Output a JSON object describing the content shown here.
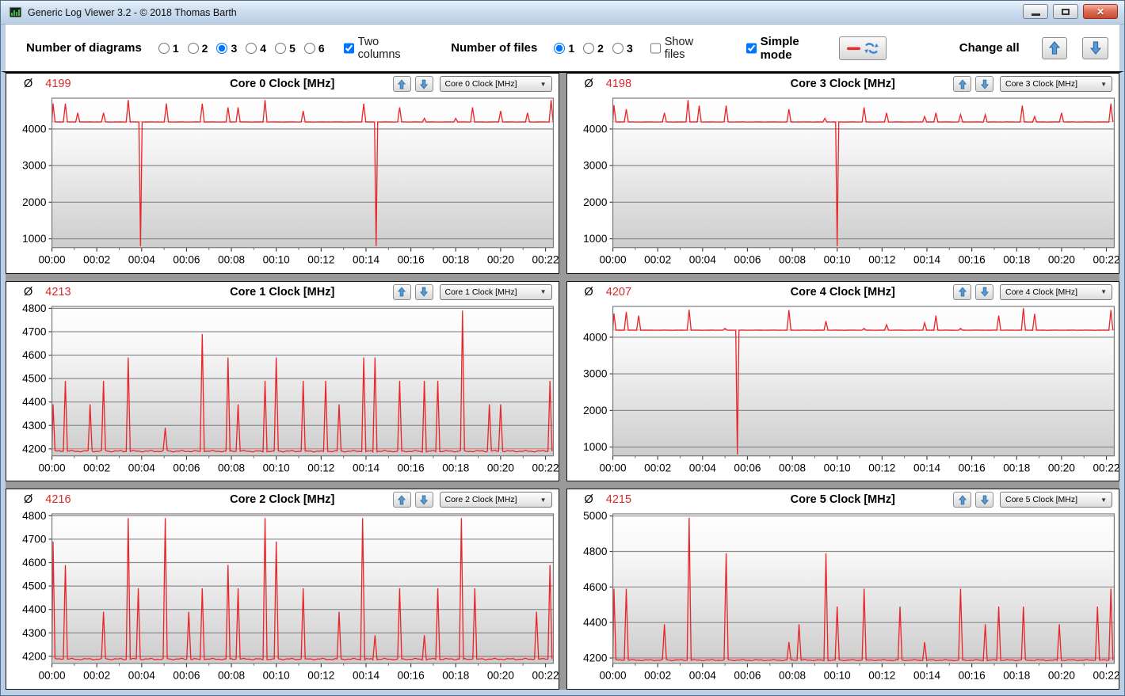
{
  "window": {
    "title": "Generic Log Viewer 3.2 - © 2018 Thomas Barth",
    "controls": {
      "minimize": "minimize",
      "maximize": "maximize",
      "close": "close"
    }
  },
  "toolbar": {
    "diagrams_label": "Number of diagrams",
    "diagram_options": [
      "1",
      "2",
      "3",
      "4",
      "5",
      "6"
    ],
    "diagrams_selected": "3",
    "two_columns_label": "Two columns",
    "two_columns_checked": true,
    "files_label": "Number of files",
    "file_options": [
      "1",
      "2",
      "3"
    ],
    "files_selected": "1",
    "show_files_label": "Show files",
    "show_files_checked": false,
    "simple_mode_label": "Simple mode",
    "simple_mode_checked": true,
    "change_all_label": "Change all"
  },
  "colors": {
    "line": "#e8262a",
    "line_faint": "#f2a8a8",
    "average_value": "#d42a2a",
    "grid_line": "#8c8c8c",
    "plot_border": "#7a7a7a",
    "arrow_blue": "#4a8ed2"
  },
  "chart_data": [
    {
      "type": "line",
      "title": "Core 0 Clock [MHz]",
      "average": "4199",
      "average_symbol": "Ø",
      "dropdown_value": "Core 0 Clock [MHz]",
      "x_tick_labels": [
        "00:00",
        "00:02",
        "00:04",
        "00:06",
        "00:08",
        "00:10",
        "00:12",
        "00:14",
        "00:16",
        "00:18",
        "00:20",
        "00:22"
      ],
      "xlim": [
        0,
        22.35
      ],
      "ylim": [
        760,
        4840
      ],
      "yticks": [
        1000,
        2000,
        3000,
        4000
      ],
      "baseline": 4190,
      "spikes": [
        [
          0.05,
          4690
        ],
        [
          0.6,
          4690
        ],
        [
          1.15,
          4440
        ],
        [
          2.3,
          4440
        ],
        [
          3.4,
          4790
        ],
        [
          5.1,
          4690
        ],
        [
          6.7,
          4690
        ],
        [
          7.85,
          4590
        ],
        [
          8.3,
          4590
        ],
        [
          9.5,
          4790
        ],
        [
          11.2,
          4490
        ],
        [
          13.9,
          4690
        ],
        [
          15.5,
          4590
        ],
        [
          16.6,
          4290
        ],
        [
          18.0,
          4290
        ],
        [
          18.75,
          4590
        ],
        [
          20.0,
          4490
        ],
        [
          21.2,
          4440
        ],
        [
          22.25,
          4790
        ]
      ],
      "dips": [
        [
          3.95,
          800
        ],
        [
          14.45,
          800
        ]
      ]
    },
    {
      "type": "line",
      "title": "Core 3 Clock [MHz]",
      "average": "4198",
      "average_symbol": "Ø",
      "dropdown_value": "Core 3 Clock [MHz]",
      "x_tick_labels": [
        "00:00",
        "00:02",
        "00:04",
        "00:06",
        "00:08",
        "00:10",
        "00:12",
        "00:14",
        "00:16",
        "00:18",
        "00:20",
        "00:22"
      ],
      "xlim": [
        0,
        22.35
      ],
      "ylim": [
        760,
        4840
      ],
      "yticks": [
        1000,
        2000,
        3000,
        4000
      ],
      "baseline": 4190,
      "spikes": [
        [
          0.05,
          4650
        ],
        [
          0.6,
          4540
        ],
        [
          2.3,
          4440
        ],
        [
          3.35,
          4790
        ],
        [
          3.85,
          4640
        ],
        [
          5.05,
          4640
        ],
        [
          7.85,
          4540
        ],
        [
          9.45,
          4290
        ],
        [
          11.2,
          4590
        ],
        [
          12.2,
          4440
        ],
        [
          13.9,
          4340
        ],
        [
          14.4,
          4440
        ],
        [
          15.5,
          4390
        ],
        [
          16.6,
          4390
        ],
        [
          18.25,
          4640
        ],
        [
          18.8,
          4340
        ],
        [
          20.0,
          4440
        ],
        [
          22.2,
          4690
        ]
      ],
      "dips": [
        [
          10.0,
          800
        ]
      ]
    },
    {
      "type": "line",
      "title": "Core 1 Clock [MHz]",
      "average": "4213",
      "average_symbol": "Ø",
      "dropdown_value": "Core 1 Clock [MHz]",
      "x_tick_labels": [
        "00:00",
        "00:02",
        "00:04",
        "00:06",
        "00:08",
        "00:10",
        "00:12",
        "00:14",
        "00:16",
        "00:18",
        "00:20",
        "00:22"
      ],
      "xlim": [
        0,
        22.35
      ],
      "ylim": [
        4170,
        4808
      ],
      "yticks": [
        4200,
        4300,
        4400,
        4500,
        4600,
        4700,
        4800
      ],
      "baseline": 4190,
      "spikes": [
        [
          0.05,
          4390
        ],
        [
          0.6,
          4490
        ],
        [
          1.7,
          4390
        ],
        [
          2.3,
          4490
        ],
        [
          3.4,
          4590
        ],
        [
          5.05,
          4290
        ],
        [
          6.7,
          4690
        ],
        [
          7.85,
          4590
        ],
        [
          8.3,
          4390
        ],
        [
          9.5,
          4490
        ],
        [
          10.0,
          4590
        ],
        [
          11.2,
          4490
        ],
        [
          12.2,
          4490
        ],
        [
          12.8,
          4390
        ],
        [
          13.9,
          4590
        ],
        [
          14.4,
          4590
        ],
        [
          15.5,
          4490
        ],
        [
          16.6,
          4490
        ],
        [
          17.2,
          4490
        ],
        [
          18.3,
          4790
        ],
        [
          19.5,
          4390
        ],
        [
          20.0,
          4390
        ],
        [
          22.2,
          4490
        ]
      ],
      "dips": []
    },
    {
      "type": "line",
      "title": "Core 4 Clock [MHz]",
      "average": "4207",
      "average_symbol": "Ø",
      "dropdown_value": "Core 4 Clock [MHz]",
      "x_tick_labels": [
        "00:00",
        "00:02",
        "00:04",
        "00:06",
        "00:08",
        "00:10",
        "00:12",
        "00:14",
        "00:16",
        "00:18",
        "00:20",
        "00:22"
      ],
      "xlim": [
        0,
        22.35
      ],
      "ylim": [
        760,
        4840
      ],
      "yticks": [
        1000,
        2000,
        3000,
        4000
      ],
      "baseline": 4190,
      "spikes": [
        [
          0.05,
          4650
        ],
        [
          0.6,
          4690
        ],
        [
          1.15,
          4590
        ],
        [
          3.4,
          4750
        ],
        [
          5.0,
          4240
        ],
        [
          7.85,
          4740
        ],
        [
          9.5,
          4440
        ],
        [
          11.2,
          4240
        ],
        [
          12.2,
          4340
        ],
        [
          13.9,
          4390
        ],
        [
          14.4,
          4590
        ],
        [
          15.5,
          4240
        ],
        [
          17.2,
          4590
        ],
        [
          18.3,
          4790
        ],
        [
          18.8,
          4640
        ],
        [
          22.2,
          4740
        ]
      ],
      "dips": [
        [
          5.55,
          800
        ]
      ]
    },
    {
      "type": "line",
      "title": "Core 2 Clock [MHz]",
      "average": "4216",
      "average_symbol": "Ø",
      "dropdown_value": "Core 2 Clock [MHz]",
      "x_tick_labels": [
        "00:00",
        "00:02",
        "00:04",
        "00:06",
        "00:08",
        "00:10",
        "00:12",
        "00:14",
        "00:16",
        "00:18",
        "00:20",
        "00:22"
      ],
      "xlim": [
        0,
        22.35
      ],
      "ylim": [
        4170,
        4808
      ],
      "yticks": [
        4200,
        4300,
        4400,
        4500,
        4600,
        4700,
        4800
      ],
      "baseline": 4188,
      "spikes": [
        [
          0.05,
          4690
        ],
        [
          0.6,
          4590
        ],
        [
          2.3,
          4390
        ],
        [
          3.4,
          4790
        ],
        [
          3.85,
          4490
        ],
        [
          5.05,
          4790
        ],
        [
          6.1,
          4390
        ],
        [
          6.7,
          4490
        ],
        [
          7.85,
          4590
        ],
        [
          8.3,
          4490
        ],
        [
          9.5,
          4790
        ],
        [
          10.0,
          4690
        ],
        [
          11.2,
          4490
        ],
        [
          12.8,
          4390
        ],
        [
          13.85,
          4790
        ],
        [
          14.4,
          4290
        ],
        [
          15.5,
          4490
        ],
        [
          16.6,
          4290
        ],
        [
          17.2,
          4490
        ],
        [
          18.25,
          4790
        ],
        [
          18.85,
          4490
        ],
        [
          21.6,
          4390
        ],
        [
          22.2,
          4590
        ]
      ],
      "dips": []
    },
    {
      "type": "line",
      "title": "Core 5 Clock [MHz]",
      "average": "4215",
      "average_symbol": "Ø",
      "dropdown_value": "Core 5 Clock [MHz]",
      "x_tick_labels": [
        "00:00",
        "00:02",
        "00:04",
        "00:06",
        "00:08",
        "00:10",
        "00:12",
        "00:14",
        "00:16",
        "00:18",
        "00:20",
        "00:22"
      ],
      "xlim": [
        0,
        22.35
      ],
      "ylim": [
        4170,
        5012
      ],
      "yticks": [
        4200,
        4400,
        4600,
        4800,
        5000
      ],
      "baseline": 4188,
      "spikes": [
        [
          0.05,
          4590
        ],
        [
          0.6,
          4590
        ],
        [
          2.3,
          4390
        ],
        [
          3.4,
          4990
        ],
        [
          5.05,
          4790
        ],
        [
          7.85,
          4290
        ],
        [
          8.3,
          4390
        ],
        [
          9.5,
          4790
        ],
        [
          10.0,
          4490
        ],
        [
          11.2,
          4590
        ],
        [
          12.8,
          4490
        ],
        [
          13.9,
          4290
        ],
        [
          15.5,
          4590
        ],
        [
          16.6,
          4390
        ],
        [
          17.2,
          4490
        ],
        [
          18.3,
          4490
        ],
        [
          19.9,
          4390
        ],
        [
          21.6,
          4490
        ],
        [
          22.2,
          4590
        ]
      ],
      "dips": []
    }
  ]
}
